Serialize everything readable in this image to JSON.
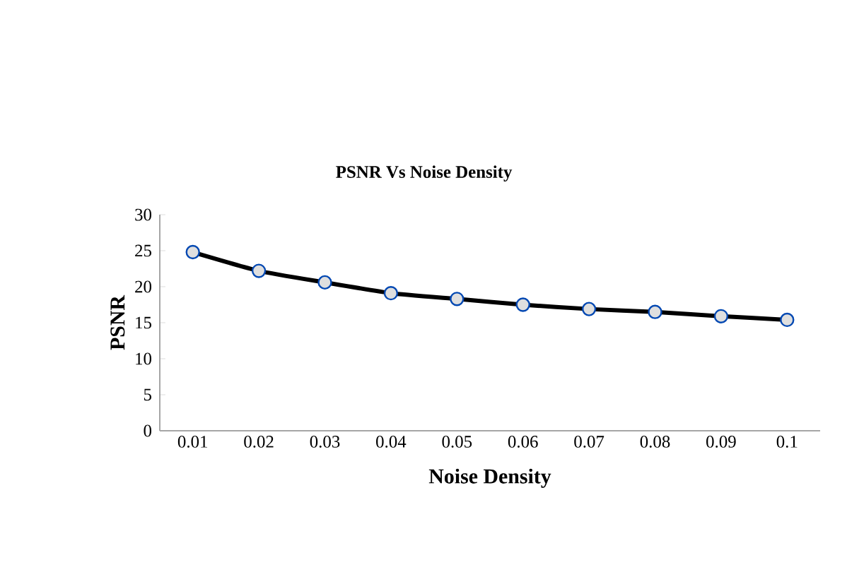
{
  "chart_data": {
    "type": "line",
    "title": "PSNR Vs Noise Density",
    "xlabel": "Noise Density",
    "ylabel": "PSNR",
    "categories": [
      "0.01",
      "0.02",
      "0.03",
      "0.04",
      "0.05",
      "0.06",
      "0.07",
      "0.08",
      "0.09",
      "0.1"
    ],
    "series": [
      {
        "color": "#000000",
        "values": [
          24.8,
          22.2,
          20.6,
          19.1,
          18.3,
          17.5,
          16.9,
          16.5,
          15.9,
          15.4
        ]
      }
    ],
    "ylim": [
      0,
      30
    ],
    "yticks": [
      0,
      5,
      10,
      15,
      20,
      25,
      30
    ],
    "grid": false,
    "marker": "circle",
    "line_style": "solid"
  }
}
